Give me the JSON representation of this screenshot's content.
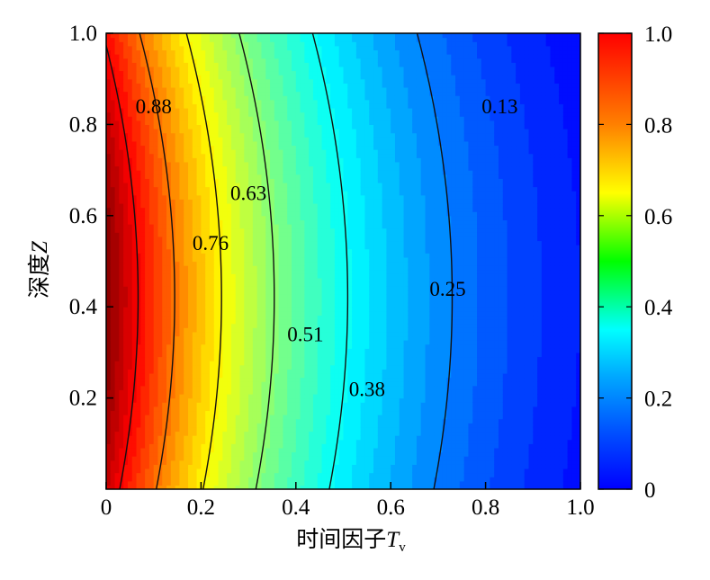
{
  "chart_data": {
    "type": "heatmap",
    "subtype": "filled-contour",
    "title": "",
    "xlabel": "时间因子",
    "xlabel_symbol": "T",
    "xlabel_subscript": "v",
    "ylabel": "深度",
    "ylabel_symbol": "Z",
    "xlim": [
      0,
      1.0
    ],
    "ylim": [
      0,
      1.0
    ],
    "x_ticks": [
      "0",
      "0.2",
      "0.4",
      "0.6",
      "0.8",
      "1.0"
    ],
    "y_ticks": [
      "0.2",
      "0.4",
      "0.6",
      "0.8",
      "1.0"
    ],
    "colorbar": {
      "range": [
        0,
        1.0
      ],
      "ticks": [
        "0",
        "0.2",
        "0.4",
        "0.6",
        "0.8",
        "1.0"
      ],
      "colormap": "jet"
    },
    "contour_levels": [
      0.13,
      0.25,
      0.38,
      0.51,
      0.63,
      0.76,
      0.88
    ],
    "contour_labels": [
      {
        "text": "0.88",
        "x": 0.1,
        "y": 0.84
      },
      {
        "text": "0.76",
        "x": 0.22,
        "y": 0.54
      },
      {
        "text": "0.63",
        "x": 0.3,
        "y": 0.65
      },
      {
        "text": "0.51",
        "x": 0.42,
        "y": 0.34
      },
      {
        "text": "0.38",
        "x": 0.55,
        "y": 0.22
      },
      {
        "text": "0.25",
        "x": 0.72,
        "y": 0.44
      },
      {
        "text": "0.13",
        "x": 0.83,
        "y": 0.84
      }
    ]
  }
}
